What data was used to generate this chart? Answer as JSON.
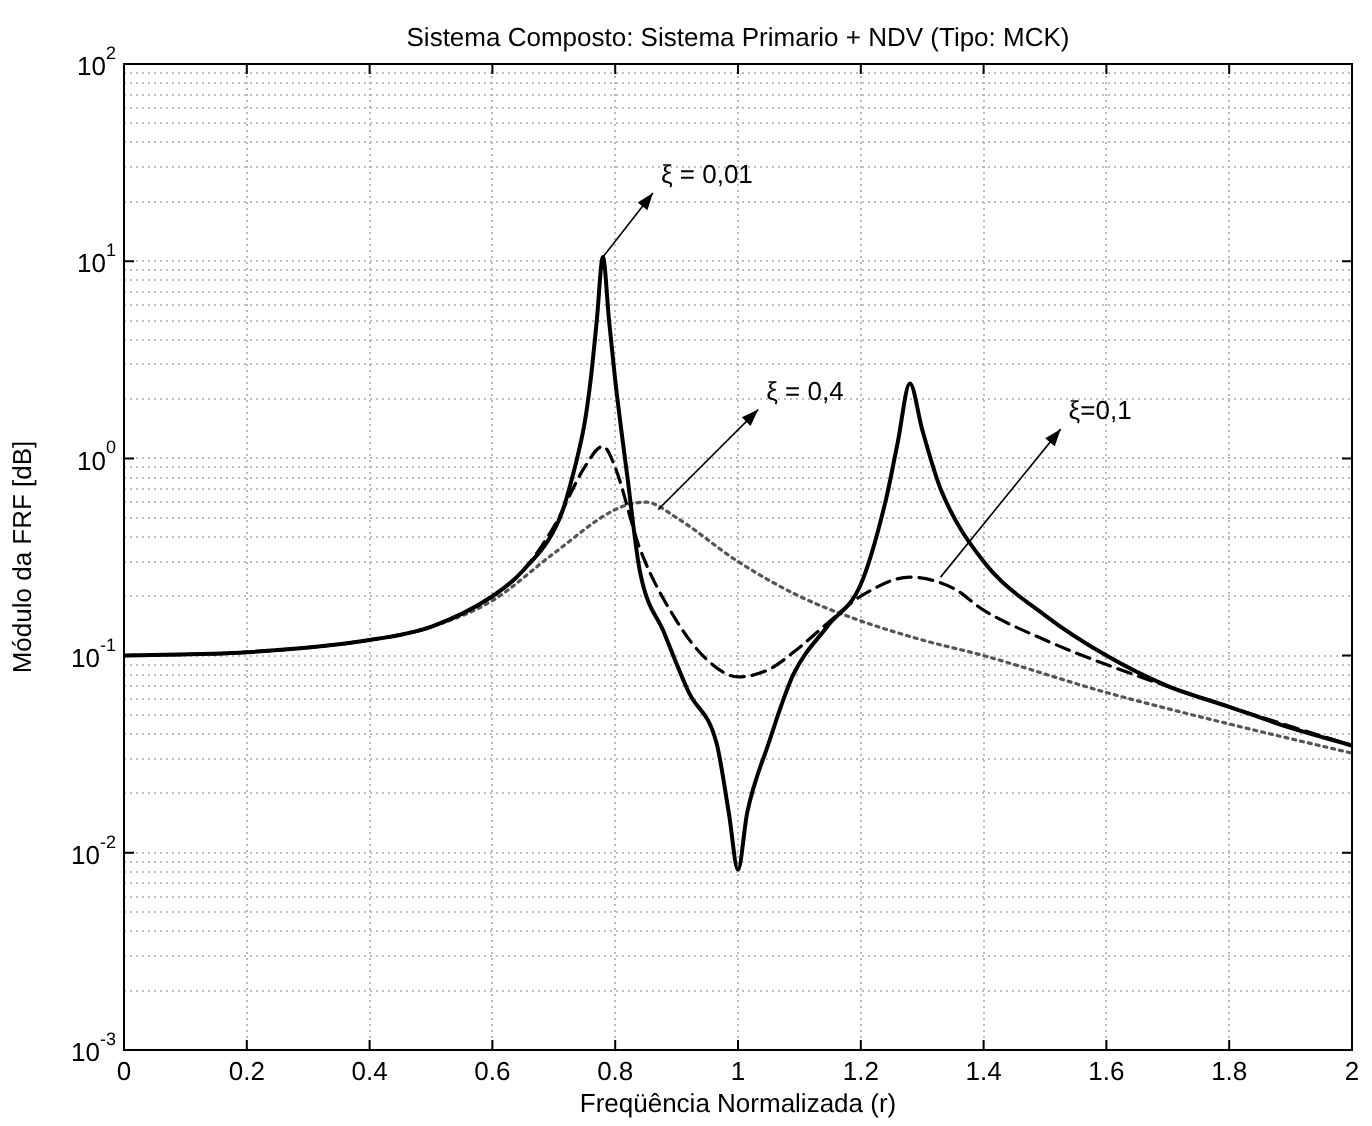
{
  "chart_data": {
    "type": "line",
    "title": "Sistema Composto: Sistema Primario + NDV (Tipo: MCK)",
    "xlabel": "Freqüência Normalizada (r)",
    "ylabel": "Módulo da FRF [dB]",
    "log": "y",
    "grid": true,
    "legend": false,
    "marker": "none",
    "xlim": [
      0,
      2
    ],
    "xticks": [
      0,
      0.2,
      0.4,
      0.6,
      0.8,
      1,
      1.2,
      1.4,
      1.6,
      1.8,
      2
    ],
    "ylim": [
      0.001,
      100
    ],
    "yticks": [
      {
        "value": 0.001,
        "label": "10$^{-3}$"
      },
      {
        "value": 0.01,
        "label": "10$^{-2}$"
      },
      {
        "value": 0.1,
        "label": "10$^{-1}$"
      },
      {
        "value": 1,
        "label": "10$^{0}$"
      },
      {
        "value": 10,
        "label": "10$^{1}$"
      },
      {
        "value": 100,
        "label": "10$^{2}$"
      }
    ],
    "series": [
      {
        "color": "#000000",
        "line_style": "solid",
        "x": [
          0,
          0.2,
          0.4,
          0.5,
          0.6,
          0.65,
          0.71,
          0.73,
          0.75,
          0.76,
          0.77,
          0.78,
          0.79,
          0.8,
          0.82,
          0.84,
          0.88,
          0.92,
          0.965,
          0.985,
          1.0,
          1.015,
          1.05,
          1.09,
          1.145,
          1.2,
          1.24,
          1.26,
          1.28,
          1.3,
          1.33,
          1.4,
          1.5,
          1.6,
          1.7,
          1.8,
          1.9,
          2.0
        ],
        "values": [
          0.1,
          0.104,
          0.12,
          0.14,
          0.2,
          0.27,
          0.5,
          0.8,
          1.5,
          2.5,
          5,
          10.5,
          5,
          2.5,
          0.8,
          0.27,
          0.13,
          0.065,
          0.036,
          0.016,
          0.0082,
          0.016,
          0.036,
          0.08,
          0.14,
          0.23,
          0.6,
          1.2,
          2.4,
          1.4,
          0.7,
          0.3,
          0.16,
          0.1,
          0.07,
          0.055,
          0.043,
          0.035
        ]
      },
      {
        "color": "#000000",
        "line_style": "dashed",
        "x": [
          0,
          0.2,
          0.4,
          0.5,
          0.6,
          0.65,
          0.7,
          0.75,
          0.78,
          0.8,
          0.84,
          0.9,
          0.95,
          1.0,
          1.05,
          1.1,
          1.15,
          1.2,
          1.28,
          1.35,
          1.4,
          1.5,
          1.6,
          1.8,
          2.0
        ],
        "values": [
          0.1,
          0.104,
          0.12,
          0.14,
          0.2,
          0.27,
          0.45,
          0.9,
          1.15,
          0.9,
          0.35,
          0.15,
          0.095,
          0.078,
          0.085,
          0.11,
          0.15,
          0.2,
          0.25,
          0.22,
          0.17,
          0.12,
          0.09,
          0.055,
          0.035
        ]
      },
      {
        "color": "#555555",
        "line_style": "dotted",
        "x": [
          0,
          0.2,
          0.4,
          0.5,
          0.6,
          0.7,
          0.8,
          0.85,
          0.9,
          1.0,
          1.1,
          1.2,
          1.3,
          1.4,
          1.6,
          1.8,
          2.0
        ],
        "values": [
          0.1,
          0.104,
          0.12,
          0.14,
          0.19,
          0.33,
          0.55,
          0.6,
          0.5,
          0.3,
          0.2,
          0.15,
          0.12,
          0.1,
          0.065,
          0.045,
          0.032
        ]
      }
    ],
    "annotations": [
      {
        "text": "ξ = 0,01",
        "x": 0.78,
        "y": 10.5
      },
      {
        "text": "ξ = 0,4",
        "x": 0.87,
        "y": 0.55
      },
      {
        "text": "ξ=0,1",
        "x": 1.33,
        "y": 0.25
      }
    ]
  }
}
